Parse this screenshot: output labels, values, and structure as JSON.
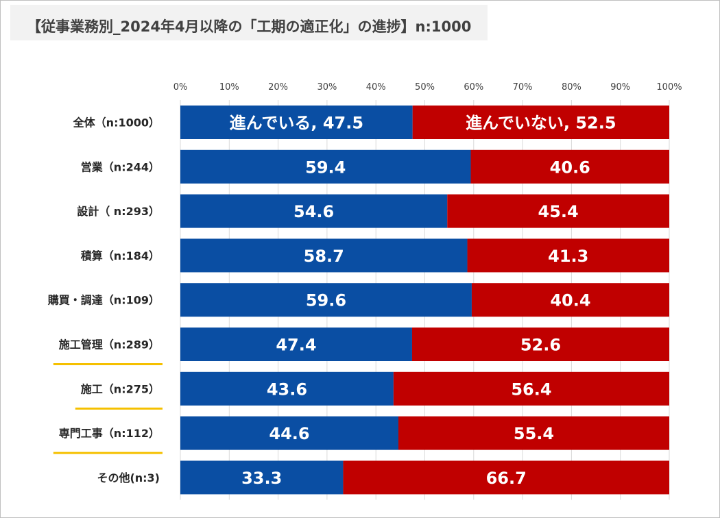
{
  "title": "【従事業務別_2024年4月以降の「工期の適正化」の進捗】n:1000",
  "colors": {
    "progress": "#0a4ea3",
    "no_progress": "#c00000",
    "highlight": "#f5c000"
  },
  "chart_data": {
    "type": "bar",
    "orientation": "horizontal",
    "stacked": "100%",
    "title": "【従事業務別_2024年4月以降の「工期の適正化」の進捗】n:1000",
    "xlim": [
      0,
      100
    ],
    "x_ticks": [
      "0%",
      "10%",
      "20%",
      "30%",
      "40%",
      "50%",
      "60%",
      "70%",
      "80%",
      "90%",
      "100%"
    ],
    "categories": [
      "全体（n:1000）",
      "営業（n:244）",
      "設計（ n:293）",
      "積算（n:184）",
      "購買・調達（n:109）",
      "施工管理（n:289）",
      "施工（n:275）",
      "専門工事（n:112）",
      "その他(n:3)"
    ],
    "highlighted": [
      false,
      false,
      false,
      false,
      false,
      true,
      true,
      true,
      false
    ],
    "series": [
      {
        "name": "進んでいる",
        "color": "#0a4ea3",
        "values": [
          47.5,
          59.4,
          54.6,
          58.7,
          59.6,
          47.4,
          43.6,
          44.6,
          33.3
        ],
        "labels": [
          "進んでいる, 47.5",
          "59.4",
          "54.6",
          "58.7",
          "59.6",
          "47.4",
          "43.6",
          "44.6",
          "33.3"
        ]
      },
      {
        "name": "進んでいない",
        "color": "#c00000",
        "values": [
          52.5,
          40.6,
          45.4,
          41.3,
          40.4,
          52.6,
          56.4,
          55.4,
          66.7
        ],
        "labels": [
          "進んでいない, 52.5",
          "40.6",
          "45.4",
          "41.3",
          "40.4",
          "52.6",
          "56.4",
          "55.4",
          "66.7"
        ]
      }
    ]
  }
}
